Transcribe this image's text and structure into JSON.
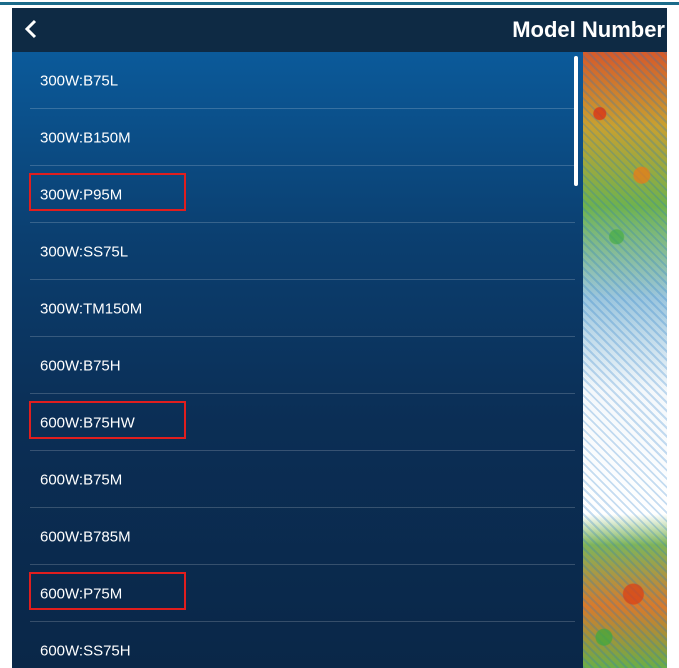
{
  "header": {
    "title": "Model Number"
  },
  "list": {
    "items": [
      {
        "label": "300W:B75L",
        "highlighted": false
      },
      {
        "label": "300W:B150M",
        "highlighted": false
      },
      {
        "label": "300W:P95M",
        "highlighted": true
      },
      {
        "label": "300W:SS75L",
        "highlighted": false
      },
      {
        "label": "300W:TM150M",
        "highlighted": false
      },
      {
        "label": "600W:B75H",
        "highlighted": false
      },
      {
        "label": "600W:B75HW",
        "highlighted": true
      },
      {
        "label": "600W:B75M",
        "highlighted": false
      },
      {
        "label": "600W:B785M",
        "highlighted": false
      },
      {
        "label": "600W:P75M",
        "highlighted": true
      },
      {
        "label": "600W:SS75H",
        "highlighted": false
      }
    ]
  }
}
